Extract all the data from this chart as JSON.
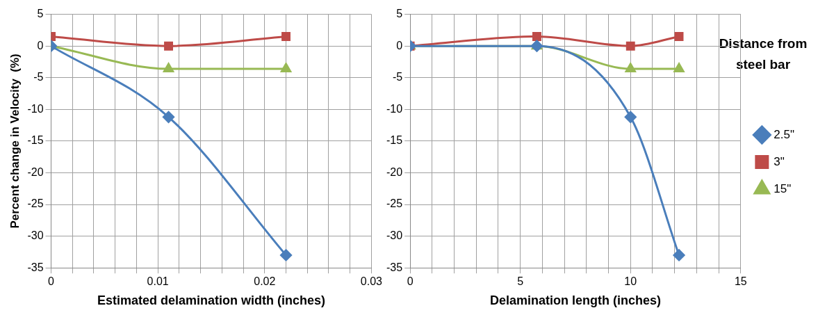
{
  "chart_data": [
    {
      "type": "line",
      "xlabel": "Estimated delamination width (inches)",
      "ylabel": "Percent change in Velocity  (%)",
      "xlim": [
        0,
        0.03
      ],
      "xticks": [
        0,
        {
          "value": 0.002,
          "label": null
        },
        {
          "value": 0.004,
          "label": null
        },
        {
          "value": 0.006,
          "label": null
        },
        {
          "value": 0.008,
          "label": null
        },
        0.01,
        {
          "value": 0.012,
          "label": null
        },
        {
          "value": 0.014,
          "label": null
        },
        {
          "value": 0.016,
          "label": null
        },
        {
          "value": 0.018,
          "label": null
        },
        0.02,
        {
          "value": 0.022,
          "label": null
        },
        {
          "value": 0.024,
          "label": null
        },
        {
          "value": 0.026,
          "label": null
        },
        {
          "value": 0.028,
          "label": null
        },
        0.03
      ],
      "ylim": [
        -35,
        5
      ],
      "yticks": [
        -35,
        -30,
        -25,
        -20,
        -15,
        -10,
        -5,
        0,
        5
      ],
      "grid": true,
      "legend": false,
      "series": [
        {
          "color": "#4a7ebb",
          "marker": "diamond",
          "x": [
            0,
            0.011,
            0.022
          ],
          "values": [
            0,
            -11.2,
            -33
          ]
        },
        {
          "color": "#be4b48",
          "marker": "square",
          "x": [
            0,
            0.011,
            0.022
          ],
          "values": [
            1.5,
            0,
            1.5
          ]
        },
        {
          "color": "#98b954",
          "marker": "triangle",
          "x": [
            0,
            0.011,
            0.022
          ],
          "values": [
            0,
            -3.6,
            -3.6
          ]
        }
      ]
    },
    {
      "type": "line",
      "xlabel": "Delamination length (inches)",
      "legend_title": "Distance from steel bar",
      "xlim": [
        0,
        15
      ],
      "xticks": [
        0,
        {
          "value": 1,
          "label": null
        },
        {
          "value": 2,
          "label": null
        },
        {
          "value": 3,
          "label": null
        },
        {
          "value": 4,
          "label": null
        },
        5,
        {
          "value": 6,
          "label": null
        },
        {
          "value": 7,
          "label": null
        },
        {
          "value": 8,
          "label": null
        },
        {
          "value": 9,
          "label": null
        },
        10,
        {
          "value": 11,
          "label": null
        },
        {
          "value": 12,
          "label": null
        },
        {
          "value": 13,
          "label": null
        },
        {
          "value": 14,
          "label": null
        },
        15
      ],
      "ylim": [
        -35,
        5
      ],
      "yticks": [
        -35,
        -30,
        -25,
        -20,
        -15,
        -10,
        -5,
        0,
        5
      ],
      "grid": true,
      "legend": "right",
      "series": [
        {
          "name": "2.5\"",
          "color": "#4a7ebb",
          "marker": "diamond",
          "x": [
            0,
            5.75,
            10,
            12.2
          ],
          "values": [
            0,
            0,
            -11.2,
            -33
          ]
        },
        {
          "name": "3\"",
          "color": "#be4b48",
          "marker": "square",
          "x": [
            0,
            5.75,
            10,
            12.2
          ],
          "values": [
            0,
            1.5,
            0,
            1.5
          ]
        },
        {
          "name": "15\"",
          "color": "#98b954",
          "marker": "triangle",
          "x": [
            0,
            5.75,
            10,
            12.2
          ],
          "values": [
            0,
            0,
            -3.6,
            -3.6
          ]
        }
      ]
    }
  ]
}
